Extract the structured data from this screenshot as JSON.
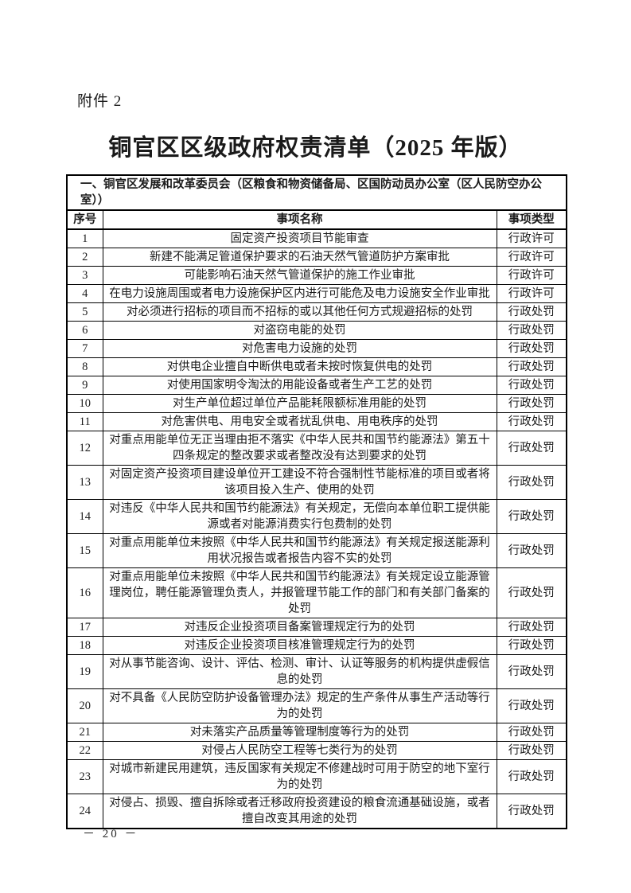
{
  "page": {
    "attachment_label": "附件 2",
    "title": "铜官区区级政府权责清单（2025 年版）",
    "page_number": "－ 20 －"
  },
  "table": {
    "section_header": "一、铜官区发展和改革委员会（区粮食和物资储备局、区国防动员办公室（区人民防空办公室））",
    "columns": [
      "序号",
      "事项名称",
      "事项类型"
    ],
    "rows": [
      {
        "no": "1",
        "name": "固定资产投资项目节能审查",
        "type": "行政许可"
      },
      {
        "no": "2",
        "name": "新建不能满足管道保护要求的石油天然气管道防护方案审批",
        "type": "行政许可"
      },
      {
        "no": "3",
        "name": "可能影响石油天然气管道保护的施工作业审批",
        "type": "行政许可"
      },
      {
        "no": "4",
        "name": "在电力设施周围或者电力设施保护区内进行可能危及电力设施安全作业审批",
        "type": "行政许可"
      },
      {
        "no": "5",
        "name": "对必须进行招标的项目而不招标的或以其他任何方式规避招标的处罚",
        "type": "行政处罚"
      },
      {
        "no": "6",
        "name": "对盗窃电能的处罚",
        "type": "行政处罚"
      },
      {
        "no": "7",
        "name": "对危害电力设施的处罚",
        "type": "行政处罚"
      },
      {
        "no": "8",
        "name": "对供电企业擅自中断供电或者未按时恢复供电的处罚",
        "type": "行政处罚"
      },
      {
        "no": "9",
        "name": "对使用国家明令淘汰的用能设备或者生产工艺的处罚",
        "type": "行政处罚"
      },
      {
        "no": "10",
        "name": "对生产单位超过单位产品能耗限额标准用能的处罚",
        "type": "行政处罚"
      },
      {
        "no": "11",
        "name": "对危害供电、用电安全或者扰乱供电、用电秩序的处罚",
        "type": "行政处罚"
      },
      {
        "no": "12",
        "name": "对重点用能单位无正当理由拒不落实《中华人民共和国节约能源法》第五十四条规定的整改要求或者整改没有达到要求的处罚",
        "type": "行政处罚"
      },
      {
        "no": "13",
        "name": "对固定资产投资项目建设单位开工建设不符合强制性节能标准的项目或者将该项目投入生产、使用的处罚",
        "type": "行政处罚"
      },
      {
        "no": "14",
        "name": "对违反《中华人民共和国节约能源法》有关规定，无偿向本单位职工提供能源或者对能源消费实行包费制的处罚",
        "type": "行政处罚"
      },
      {
        "no": "15",
        "name": "对重点用能单位未按照《中华人民共和国节约能源法》有关规定报送能源利用状况报告或者报告内容不实的处罚",
        "type": "行政处罚"
      },
      {
        "no": "16",
        "name": "对重点用能单位未按照《中华人民共和国节约能源法》有关规定设立能源管理岗位，聘任能源管理负责人，并报管理节能工作的部门和有关部门备案的处罚",
        "type": "行政处罚"
      },
      {
        "no": "17",
        "name": "对违反企业投资项目备案管理规定行为的处罚",
        "type": "行政处罚"
      },
      {
        "no": "18",
        "name": "对违反企业投资项目核准管理规定行为的处罚",
        "type": "行政处罚"
      },
      {
        "no": "19",
        "name": "对从事节能咨询、设计、评估、检测、审计、认证等服务的机构提供虚假信息的处罚",
        "type": "行政处罚"
      },
      {
        "no": "20",
        "name": "对不具备《人民防空防护设备管理办法》规定的生产条件从事生产活动等行为的处罚",
        "type": "行政处罚"
      },
      {
        "no": "21",
        "name": "对未落实产品质量等管理制度等行为的处罚",
        "type": "行政处罚"
      },
      {
        "no": "22",
        "name": "对侵占人民防空工程等七类行为的处罚",
        "type": "行政处罚"
      },
      {
        "no": "23",
        "name": "对城市新建民用建筑，违反国家有关规定不修建战时可用于防空的地下室行为的处罚",
        "type": "行政处罚"
      },
      {
        "no": "24",
        "name": "对侵占、损毁、擅自拆除或者迁移政府投资建设的粮食流通基础设施，或者擅自改变其用途的处罚",
        "type": "行政处罚"
      }
    ]
  }
}
